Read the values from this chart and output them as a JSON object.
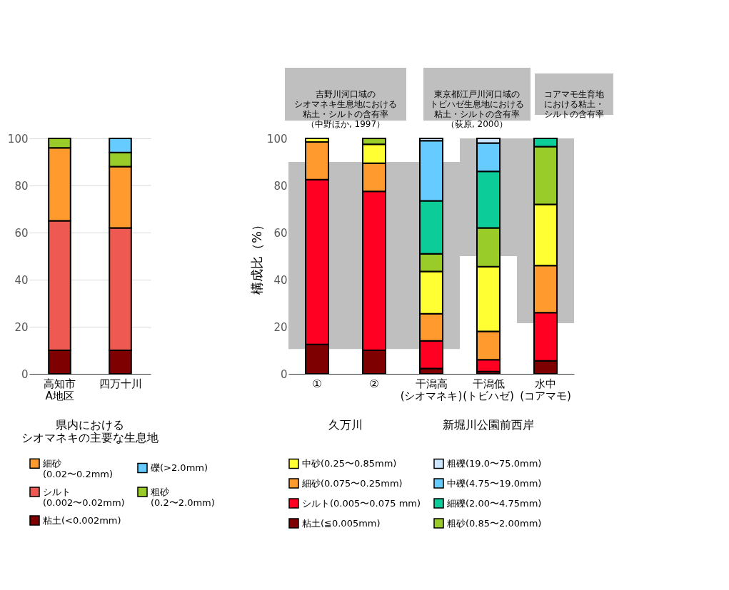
{
  "chart_data": [
    {
      "type": "bar",
      "stacked": true,
      "categories": [
        "高知市\nA地区",
        "四万十川"
      ],
      "ylim": [
        0,
        100
      ],
      "yticks": [
        0,
        20,
        40,
        60,
        80,
        100
      ],
      "grid": "y",
      "legend": "bottom",
      "annotations": [
        "県内におけるシオマネキの主要な生息地"
      ],
      "series": [
        {
          "name": "粘土(<0.002mm)",
          "color": "#7f0000",
          "values": [
            10,
            10
          ]
        },
        {
          "name": "シルト\n(0.002〜0.02mm)",
          "color": "#ee5a52",
          "values": [
            55,
            52
          ]
        },
        {
          "name": "細砂\n(0.02〜0.2mm)",
          "color": "#fe9a2e",
          "values": [
            31,
            26
          ]
        },
        {
          "name": "粗砂\n(0.2〜2.0mm)",
          "color": "#99cc28",
          "values": [
            4,
            6
          ]
        },
        {
          "name": "礫(>2.0mm)",
          "color": "#66ccff",
          "values": [
            null,
            6
          ]
        }
      ]
    },
    {
      "type": "bar",
      "stacked": true,
      "categories": [
        "①",
        "②",
        "干潟高\n(シオマネキ)",
        "干潟低\n(トビハゼ)",
        "水中\n(コアマモ)"
      ],
      "ylim": [
        0,
        100
      ],
      "yticks": [
        0,
        20,
        40,
        60,
        80,
        100
      ],
      "ylabel": "構成比（%）",
      "grid": false,
      "legend": "bottom",
      "bands": [
        {
          "axis": "y",
          "from": 10.5,
          "to": 90,
          "color": "#bfbfbf"
        },
        {
          "axis": "y",
          "from": 50,
          "to": 100,
          "color": "#bfbfbf"
        },
        {
          "axis": "y",
          "from": 21.5,
          "to": 100,
          "color": "#bfbfbf"
        }
      ],
      "annotations": [
        "吉野川河口域のシオマネキ生息地における粘土・シルトの含有率（中野ほか, 1997）",
        "東京都江戸川河口域のトビハゼ生息地における粘土・シルトの含有率（荻原, 2000）",
        "コアマモ生育地における粘土・シルトの含有率",
        "久万川",
        "新堀川公園前西岸"
      ],
      "series": [
        {
          "name": "粘土(≦0.005mm)",
          "color": "#7f0000",
          "values": [
            12.5,
            10,
            2.3,
            1,
            5.5
          ]
        },
        {
          "name": "シルト(0.005〜0.075 mm)",
          "color": "#ff0022",
          "values": [
            70,
            67.5,
            11.7,
            5,
            20.5
          ]
        },
        {
          "name": "細砂(0.075〜0.25mm)",
          "color": "#fe9a2e",
          "values": [
            16,
            12,
            11.5,
            12,
            20
          ]
        },
        {
          "name": "中砂(0.25〜0.85mm)",
          "color": "#ffff33",
          "values": [
            1.5,
            8,
            18,
            27.5,
            26
          ]
        },
        {
          "name": "粗砂(0.85〜2.00mm)",
          "color": "#99cc28",
          "values": [
            null,
            2.5,
            7.5,
            16.5,
            24.5
          ]
        },
        {
          "name": "細礫(2.00〜4.75mm)",
          "color": "#0ccc99",
          "values": [
            null,
            null,
            22.5,
            24,
            3.5
          ]
        },
        {
          "name": "中礫(4.75〜19.0mm)",
          "color": "#66ccff",
          "values": [
            null,
            null,
            25.5,
            12,
            null
          ]
        },
        {
          "name": "粗礫(19.0〜75.0mm)",
          "color": "#cce6ff",
          "values": [
            null,
            null,
            1,
            2,
            null
          ]
        }
      ]
    }
  ]
}
